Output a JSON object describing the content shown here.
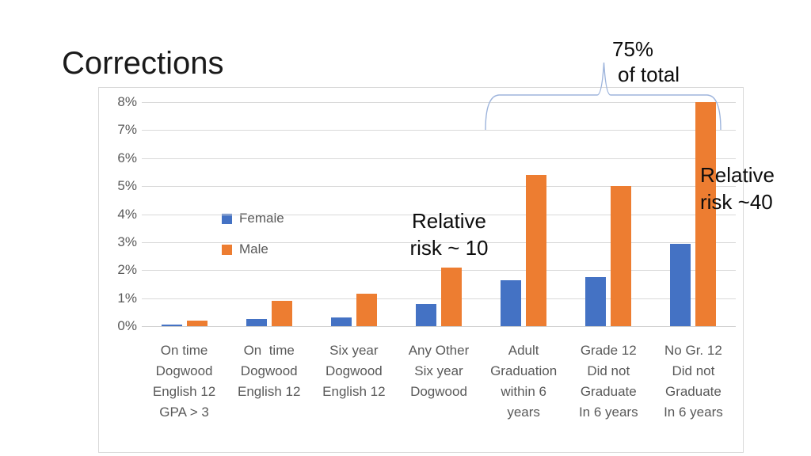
{
  "slide": {
    "title": "Corrections"
  },
  "chart_data": {
    "type": "bar",
    "title": "",
    "xlabel": "",
    "ylabel": "",
    "value_unit": "%",
    "ylim": [
      0,
      8
    ],
    "ytick_labels": [
      "0%",
      "1%",
      "2%",
      "3%",
      "4%",
      "5%",
      "6%",
      "7%",
      "8%"
    ],
    "grid": true,
    "legend_position": "inside-left",
    "categories": [
      [
        "On time",
        "Dogwood",
        "English 12",
        "GPA > 3"
      ],
      [
        "On  time",
        "Dogwood",
        "English 12"
      ],
      [
        "Six year",
        "Dogwood",
        "English 12"
      ],
      [
        "Any Other",
        "Six year",
        "Dogwood"
      ],
      [
        "Adult",
        "Graduation",
        "within 6",
        "years"
      ],
      [
        "Grade 12",
        "Did not",
        "Graduate",
        "In 6 years"
      ],
      [
        "No Gr. 12",
        "Did not",
        "Graduate",
        "In 6 years"
      ]
    ],
    "series": [
      {
        "name": "Female",
        "color": "#4472C4",
        "values": [
          0.07,
          0.25,
          0.32,
          0.8,
          1.65,
          1.75,
          2.95
        ]
      },
      {
        "name": "Male",
        "color": "#ED7D31",
        "values": [
          0.2,
          0.9,
          1.15,
          2.1,
          5.4,
          5.0,
          8.0
        ]
      }
    ]
  },
  "annotations": {
    "total": {
      "line1": "75%",
      "line2": "of total"
    },
    "risk10": {
      "line1": "Relative",
      "line2": "risk ~ 10"
    },
    "risk40": {
      "line1": "Relative",
      "line2": "risk ~40"
    }
  },
  "shapes": {
    "brace_color": "#9DB4DC"
  }
}
